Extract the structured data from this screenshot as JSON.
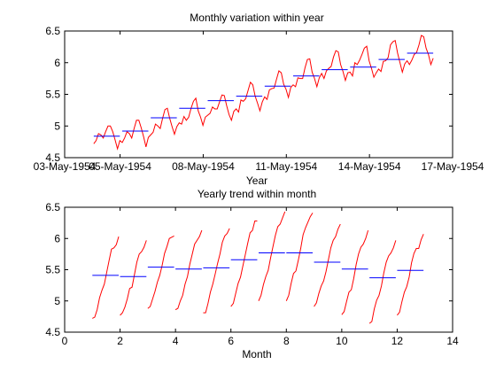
{
  "chart_data": [
    {
      "type": "line",
      "title": "Monthly variation within year",
      "xlabel": "Year",
      "ylabel": "",
      "xlim": [
        "03-May-1954",
        "17-May-1954"
      ],
      "ylim": [
        4.5,
        6.5
      ],
      "xticks": [
        "03-May-1954",
        "05-May-1954",
        "08-May-1954",
        "11-May-1954",
        "14-May-1954",
        "17-May-1954"
      ],
      "yticks": [
        "4.5",
        "5",
        "5.5",
        "6",
        "6.5"
      ],
      "grid": false,
      "colors": {
        "series": "#ff0000",
        "means": "#0000ff"
      },
      "series": [
        {
          "values": [
            4.72,
            4.77,
            4.88,
            4.86,
            4.81,
            4.91,
            5.0,
            5.0,
            4.91,
            4.78,
            4.64,
            4.77,
            4.74,
            4.81,
            4.91,
            4.88,
            4.81,
            4.96,
            5.09,
            5.09,
            4.97,
            4.83,
            4.67,
            4.82,
            4.86,
            4.9,
            5.03,
            5.0,
            4.96,
            5.12,
            5.26,
            5.28,
            5.12,
            4.99,
            4.87,
            4.99,
            5.05,
            5.03,
            5.15,
            5.09,
            5.14,
            5.28,
            5.39,
            5.44,
            5.24,
            5.14,
            5.01,
            5.14,
            5.17,
            5.2,
            5.3,
            5.27,
            5.27,
            5.38,
            5.49,
            5.48,
            5.32,
            5.18,
            5.09,
            5.23,
            5.27,
            5.22,
            5.41,
            5.39,
            5.43,
            5.56,
            5.69,
            5.65,
            5.47,
            5.36,
            5.24,
            5.38,
            5.46,
            5.42,
            5.57,
            5.59,
            5.6,
            5.74,
            5.87,
            5.84,
            5.66,
            5.58,
            5.45,
            5.61,
            5.65,
            5.62,
            5.76,
            5.75,
            5.75,
            5.92,
            6.05,
            6.06,
            5.85,
            5.75,
            5.62,
            5.76,
            5.83,
            5.75,
            5.87,
            5.91,
            5.94,
            6.09,
            6.19,
            6.17,
            5.97,
            5.86,
            5.72,
            5.84,
            5.85,
            5.79,
            6.0,
            5.97,
            6.04,
            6.13,
            6.23,
            6.26,
            6.03,
            5.91,
            5.77,
            5.84,
            5.9,
            5.86,
            6.02,
            6.03,
            6.08,
            6.28,
            6.33,
            6.35,
            6.15,
            6.0,
            5.85,
            5.98,
            6.03,
            5.97,
            6.04,
            6.13,
            6.16,
            6.28,
            6.43,
            6.41,
            6.23,
            6.13,
            5.97,
            6.07
          ]
        },
        {
          "name": "",
          "values": [
            4.84,
            4.92,
            5.13,
            5.28,
            5.4,
            5.47,
            5.63,
            5.79,
            5.89,
            5.93,
            6.05,
            6.15
          ]
        }
      ]
    },
    {
      "type": "line",
      "title": "Yearly trend within month",
      "xlabel": "Month",
      "ylabel": "",
      "xlim": [
        0,
        14
      ],
      "ylim": [
        4.5,
        6.5
      ],
      "xticks": [
        "0",
        "2",
        "4",
        "6",
        "8",
        "10",
        "12",
        "14"
      ],
      "yticks": [
        "4.5",
        "5",
        "5.5",
        "6",
        "6.5"
      ],
      "grid": false,
      "colors": {
        "series": "#ff0000",
        "means": "#0000ff"
      },
      "month_means": [
        5.41,
        5.39,
        5.54,
        5.51,
        5.53,
        5.66,
        5.77,
        5.77,
        5.62,
        5.51,
        5.37,
        5.49
      ]
    }
  ]
}
